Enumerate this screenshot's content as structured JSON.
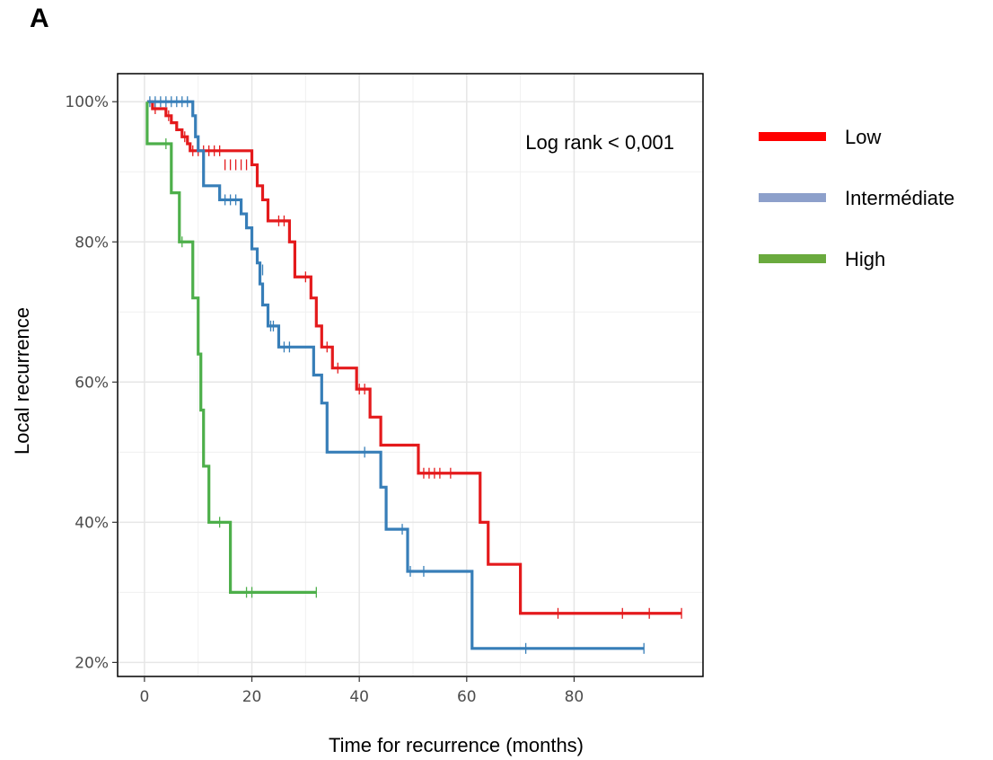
{
  "panel_label": "A",
  "chart_data": {
    "type": "line",
    "step": true,
    "title": "",
    "xlabel": "Time for recurrence (months)",
    "ylabel": "Local recurrence",
    "xlim": [
      -5,
      104
    ],
    "ylim": [
      18,
      104
    ],
    "x_ticks": [
      0,
      20,
      40,
      60,
      80
    ],
    "x_tick_labels": [
      "0",
      "20",
      "40",
      "60",
      "80"
    ],
    "y_ticks": [
      20,
      40,
      60,
      80,
      100
    ],
    "y_tick_labels": [
      "20%",
      "40%",
      "60%",
      "80%",
      "100%"
    ],
    "grid": true,
    "annotation": "Log rank < 0,001",
    "legend_position": "right",
    "series": [
      {
        "name": "Low",
        "color": "#e41a1c",
        "legend_color": "#ff0000",
        "points": [
          [
            0.5,
            100
          ],
          [
            1.5,
            99
          ],
          [
            3,
            99
          ],
          [
            4,
            98
          ],
          [
            5,
            97
          ],
          [
            6,
            96
          ],
          [
            7,
            95
          ],
          [
            8,
            94
          ],
          [
            8.5,
            93
          ],
          [
            20,
            93
          ],
          [
            20,
            91
          ],
          [
            21,
            88
          ],
          [
            22,
            86
          ],
          [
            23,
            83
          ],
          [
            27,
            83
          ],
          [
            27,
            80
          ],
          [
            28,
            75
          ],
          [
            31,
            72
          ],
          [
            32,
            68
          ],
          [
            33,
            65
          ],
          [
            35,
            62
          ],
          [
            39.5,
            62
          ],
          [
            39.5,
            59
          ],
          [
            42,
            55
          ],
          [
            44,
            51
          ],
          [
            51,
            51
          ],
          [
            51,
            47
          ],
          [
            62.5,
            47
          ],
          [
            62.5,
            40
          ],
          [
            64,
            34
          ],
          [
            70,
            34
          ],
          [
            70,
            27
          ],
          [
            100,
            27
          ]
        ],
        "censor": [
          [
            2,
            99
          ],
          [
            4.5,
            98
          ],
          [
            7.5,
            95
          ],
          [
            9,
            93
          ],
          [
            10,
            93
          ],
          [
            11,
            93
          ],
          [
            12,
            93
          ],
          [
            13,
            93
          ],
          [
            14,
            93
          ],
          [
            15,
            91
          ],
          [
            16,
            91
          ],
          [
            17,
            91
          ],
          [
            18,
            91
          ],
          [
            19,
            91
          ],
          [
            25,
            83
          ],
          [
            26,
            83
          ],
          [
            30,
            75
          ],
          [
            34,
            65
          ],
          [
            36,
            62
          ],
          [
            40,
            59
          ],
          [
            41,
            59
          ],
          [
            52,
            47
          ],
          [
            53,
            47
          ],
          [
            54,
            47
          ],
          [
            55,
            47
          ],
          [
            57,
            47
          ],
          [
            77,
            27
          ],
          [
            89,
            27
          ],
          [
            94,
            27
          ],
          [
            100,
            27
          ]
        ]
      },
      {
        "name": "Intermédiate",
        "color": "#377eb8",
        "legend_color": "#8da0cb",
        "points": [
          [
            0.5,
            100
          ],
          [
            8.5,
            100
          ],
          [
            9,
            98
          ],
          [
            9.5,
            95
          ],
          [
            10,
            93
          ],
          [
            11,
            91
          ],
          [
            11,
            88
          ],
          [
            14,
            88
          ],
          [
            14,
            86
          ],
          [
            17,
            86
          ],
          [
            18,
            84
          ],
          [
            19,
            82
          ],
          [
            20,
            79
          ],
          [
            21,
            77
          ],
          [
            21.5,
            74
          ],
          [
            22,
            71
          ],
          [
            23,
            68
          ],
          [
            25,
            68
          ],
          [
            25,
            65
          ],
          [
            31,
            65
          ],
          [
            31.5,
            61
          ],
          [
            33,
            57
          ],
          [
            34,
            55
          ],
          [
            34,
            50
          ],
          [
            44,
            50
          ],
          [
            44,
            45
          ],
          [
            45,
            39
          ],
          [
            49,
            39
          ],
          [
            49,
            33
          ],
          [
            61,
            33
          ],
          [
            61,
            22
          ],
          [
            93,
            22
          ]
        ],
        "censor": [
          [
            1,
            100
          ],
          [
            2,
            100
          ],
          [
            3,
            100
          ],
          [
            4,
            100
          ],
          [
            5,
            100
          ],
          [
            6,
            100
          ],
          [
            7,
            100
          ],
          [
            8,
            100
          ],
          [
            15,
            86
          ],
          [
            16,
            86
          ],
          [
            17,
            86
          ],
          [
            22,
            76
          ],
          [
            23.5,
            68
          ],
          [
            24,
            68
          ],
          [
            26,
            65
          ],
          [
            27,
            65
          ],
          [
            41,
            50
          ],
          [
            48,
            39
          ],
          [
            49.5,
            33
          ],
          [
            52,
            33
          ],
          [
            71,
            22
          ],
          [
            93,
            22
          ]
        ]
      },
      {
        "name": "High",
        "color": "#4daf4a",
        "legend_color": "#6aaa3e",
        "points": [
          [
            0.5,
            100
          ],
          [
            0.5,
            94
          ],
          [
            5,
            94
          ],
          [
            5,
            87
          ],
          [
            6.5,
            87
          ],
          [
            6.5,
            80
          ],
          [
            9,
            80
          ],
          [
            9,
            72
          ],
          [
            10,
            72
          ],
          [
            10,
            64
          ],
          [
            10.5,
            56
          ],
          [
            11,
            48
          ],
          [
            12,
            48
          ],
          [
            12,
            40
          ],
          [
            16,
            40
          ],
          [
            16,
            30
          ],
          [
            32,
            30
          ]
        ],
        "censor": [
          [
            4,
            94
          ],
          [
            7,
            80
          ],
          [
            14,
            40
          ],
          [
            19,
            30
          ],
          [
            20,
            30
          ],
          [
            32,
            30
          ]
        ]
      }
    ]
  }
}
